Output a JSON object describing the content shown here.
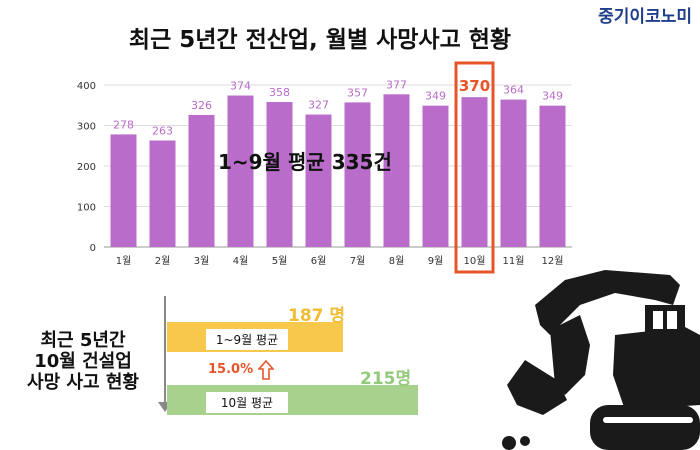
{
  "brand": "중기이코노미",
  "title": "최근 5년간 전산업, 월별 사망사고 현황",
  "average_label": "1~9월 평균 335건",
  "chart_data": {
    "type": "bar",
    "categories": [
      "1월",
      "2월",
      "3월",
      "4월",
      "5월",
      "6월",
      "7월",
      "8월",
      "9월",
      "10월",
      "11월",
      "12월"
    ],
    "values": [
      278,
      263,
      326,
      374,
      358,
      327,
      357,
      377,
      349,
      370,
      364,
      349
    ],
    "ylim": [
      0,
      400
    ],
    "yticks": [
      0,
      100,
      200,
      300,
      400
    ],
    "grid": true,
    "highlight_category": "10월",
    "colors": {
      "bar": "#b96cc9",
      "value_label": "#b96cc9",
      "highlight_value": "#e7542a",
      "highlight_box": "#e7542a",
      "grid": "#dddddd"
    }
  },
  "comparison": {
    "title_lines": [
      "최근 5년간",
      "10월 건설업",
      "사망 사고 현황"
    ],
    "bars": [
      {
        "label": "1~9월 평균",
        "value_text": "187 명",
        "value": 187,
        "color": "#f7c84b"
      },
      {
        "label": "10월 평균",
        "value_text": "215명",
        "value": 215,
        "color": "#a9d18e"
      }
    ],
    "increase_text": "15.0%",
    "increase_color": "#e7542a"
  }
}
